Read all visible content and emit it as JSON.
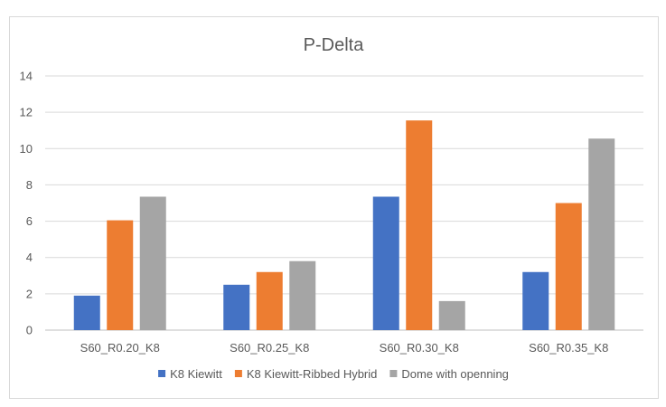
{
  "chart_data": {
    "type": "bar",
    "title": "P-Delta",
    "categories": [
      "S60_R0.20_K8",
      "S60_R0.25_K8",
      "S60_R0.30_K8",
      "S60_R0.35_K8"
    ],
    "series": [
      {
        "name": "K8 Kiewitt",
        "color": "#4472c4",
        "values": [
          1.9,
          2.5,
          7.35,
          3.2
        ]
      },
      {
        "name": "K8 Kiewitt-Ribbed Hybrid",
        "color": "#ed7d31",
        "values": [
          6.05,
          3.2,
          11.55,
          7.0
        ]
      },
      {
        "name": "Dome with openning",
        "color": "#a5a5a5",
        "values": [
          7.35,
          3.8,
          1.6,
          10.55
        ]
      }
    ],
    "ylim": [
      0,
      14
    ],
    "yticks": [
      0,
      2,
      4,
      6,
      8,
      10,
      12,
      14
    ],
    "grid": true,
    "legend": "bottom"
  }
}
